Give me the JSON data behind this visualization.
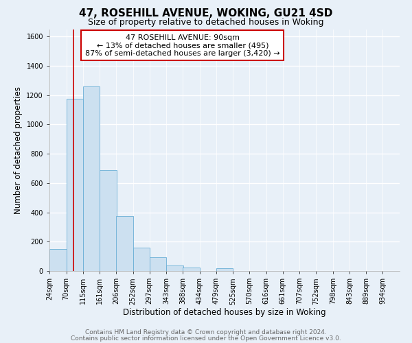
{
  "title": "47, ROSEHILL AVENUE, WOKING, GU21 4SD",
  "subtitle": "Size of property relative to detached houses in Woking",
  "xlabel": "Distribution of detached houses by size in Woking",
  "ylabel": "Number of detached properties",
  "bin_labels": [
    "24sqm",
    "70sqm",
    "115sqm",
    "161sqm",
    "206sqm",
    "252sqm",
    "297sqm",
    "343sqm",
    "388sqm",
    "434sqm",
    "479sqm",
    "525sqm",
    "570sqm",
    "616sqm",
    "661sqm",
    "707sqm",
    "752sqm",
    "798sqm",
    "843sqm",
    "889sqm",
    "934sqm"
  ],
  "bin_edges": [
    24,
    70,
    115,
    161,
    206,
    252,
    297,
    343,
    388,
    434,
    479,
    525,
    570,
    616,
    661,
    707,
    752,
    798,
    843,
    889,
    934
  ],
  "bar_heights": [
    150,
    1175,
    1260,
    690,
    375,
    160,
    92,
    38,
    22,
    0,
    18,
    0,
    0,
    0,
    0,
    0,
    0,
    0,
    0,
    0
  ],
  "bar_color": "#cce0f0",
  "bar_edge_color": "#6aafd6",
  "ylim": [
    0,
    1650
  ],
  "yticks": [
    0,
    200,
    400,
    600,
    800,
    1000,
    1200,
    1400,
    1600
  ],
  "property_line_x": 90,
  "property_line_color": "#cc0000",
  "annotation_title": "47 ROSEHILL AVENUE: 90sqm",
  "annotation_line1": "← 13% of detached houses are smaller (495)",
  "annotation_line2": "87% of semi-detached houses are larger (3,420) →",
  "footer_line1": "Contains HM Land Registry data © Crown copyright and database right 2024.",
  "footer_line2": "Contains public sector information licensed under the Open Government Licence v3.0.",
  "background_color": "#e8f0f8",
  "plot_background": "#e8f0f8",
  "grid_color": "#ffffff",
  "title_fontsize": 11,
  "subtitle_fontsize": 9,
  "axis_label_fontsize": 8.5,
  "tick_fontsize": 7,
  "footer_fontsize": 6.5,
  "annotation_fontsize": 8
}
